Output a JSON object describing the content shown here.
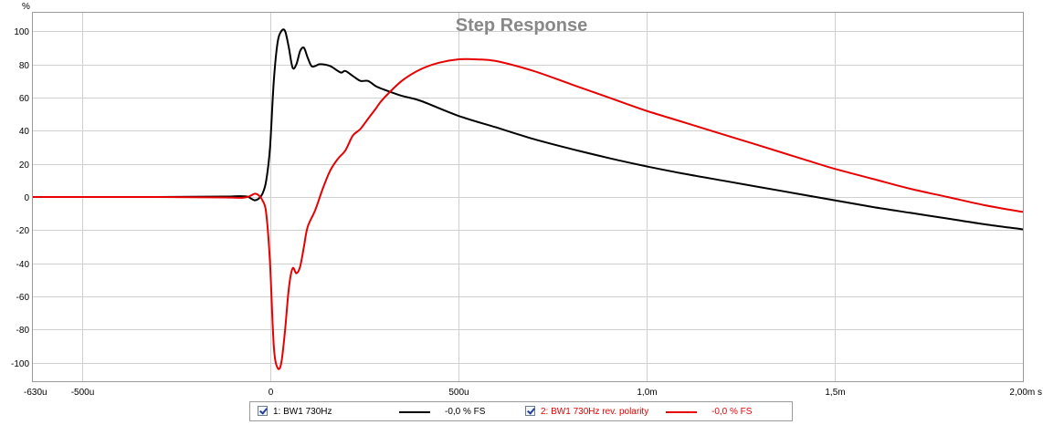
{
  "chart_data": {
    "type": "line",
    "title": "Step Response",
    "ylabel": "%",
    "xunit": "s",
    "xlim": [
      -0.63,
      2.0
    ],
    "ylim": [
      -110,
      110
    ],
    "grid": true,
    "legend_position": "bottom",
    "x_ticks": [
      {
        "v": -0.63,
        "label": "-630u"
      },
      {
        "v": -0.5,
        "label": "-500u"
      },
      {
        "v": 0,
        "label": "0"
      },
      {
        "v": 0.5,
        "label": "500u"
      },
      {
        "v": 1.0,
        "label": "1,0m"
      },
      {
        "v": 1.5,
        "label": "1,5m"
      },
      {
        "v": 2.0,
        "label": "2,00m s"
      }
    ],
    "y_ticks": [
      {
        "v": 100,
        "label": "100"
      },
      {
        "v": 80,
        "label": "80"
      },
      {
        "v": 60,
        "label": "60"
      },
      {
        "v": 40,
        "label": "40"
      },
      {
        "v": 20,
        "label": "20"
      },
      {
        "v": 0,
        "label": "0"
      },
      {
        "v": -20,
        "label": "-20"
      },
      {
        "v": -40,
        "label": "-40"
      },
      {
        "v": -60,
        "label": "-60"
      },
      {
        "v": -80,
        "label": "-80"
      },
      {
        "v": -100,
        "label": "-100"
      }
    ],
    "series": [
      {
        "name": "1: BW1 730Hz",
        "value_label": "-0,0 % FS",
        "color": "#000000",
        "points": [
          [
            -0.63,
            0
          ],
          [
            -0.3,
            0
          ],
          [
            -0.12,
            0.3
          ],
          [
            -0.08,
            0.5
          ],
          [
            -0.06,
            0.2
          ],
          [
            -0.05,
            -1
          ],
          [
            -0.04,
            -2
          ],
          [
            -0.03,
            -1
          ],
          [
            -0.02,
            2
          ],
          [
            -0.01,
            10
          ],
          [
            0,
            30
          ],
          [
            0.01,
            70
          ],
          [
            0.02,
            93
          ],
          [
            0.03,
            100
          ],
          [
            0.04,
            100
          ],
          [
            0.05,
            90
          ],
          [
            0.06,
            78
          ],
          [
            0.07,
            80
          ],
          [
            0.08,
            88
          ],
          [
            0.09,
            90
          ],
          [
            0.1,
            84
          ],
          [
            0.11,
            79
          ],
          [
            0.12,
            79
          ],
          [
            0.13,
            80
          ],
          [
            0.14,
            80
          ],
          [
            0.16,
            79
          ],
          [
            0.18,
            76
          ],
          [
            0.19,
            75
          ],
          [
            0.2,
            76
          ],
          [
            0.22,
            73
          ],
          [
            0.24,
            70
          ],
          [
            0.26,
            70
          ],
          [
            0.28,
            67
          ],
          [
            0.3,
            65
          ],
          [
            0.35,
            61
          ],
          [
            0.4,
            58
          ],
          [
            0.5,
            49
          ],
          [
            0.6,
            42
          ],
          [
            0.7,
            35
          ],
          [
            0.8,
            29
          ],
          [
            0.9,
            23.5
          ],
          [
            1.0,
            18.5
          ],
          [
            1.1,
            14
          ],
          [
            1.2,
            10
          ],
          [
            1.3,
            6
          ],
          [
            1.4,
            2
          ],
          [
            1.5,
            -2
          ],
          [
            1.6,
            -6
          ],
          [
            1.7,
            -9.5
          ],
          [
            1.8,
            -13
          ],
          [
            1.9,
            -16.5
          ],
          [
            2.0,
            -19.5
          ]
        ]
      },
      {
        "name": "2: BW1 730Hz rev. polarity",
        "value_label": "-0,0 % FS",
        "color": "#e80000",
        "points": [
          [
            -0.63,
            0
          ],
          [
            -0.3,
            0
          ],
          [
            -0.12,
            -0.3
          ],
          [
            -0.08,
            -0.5
          ],
          [
            -0.06,
            0
          ],
          [
            -0.05,
            1
          ],
          [
            -0.04,
            2
          ],
          [
            -0.03,
            1
          ],
          [
            -0.02,
            -2
          ],
          [
            -0.01,
            -10
          ],
          [
            0,
            -40
          ],
          [
            0.01,
            -90
          ],
          [
            0.02,
            -103
          ],
          [
            0.03,
            -100
          ],
          [
            0.04,
            -80
          ],
          [
            0.05,
            -55
          ],
          [
            0.06,
            -43
          ],
          [
            0.07,
            -46
          ],
          [
            0.08,
            -42
          ],
          [
            0.09,
            -30
          ],
          [
            0.1,
            -18
          ],
          [
            0.12,
            -8
          ],
          [
            0.14,
            5
          ],
          [
            0.16,
            16
          ],
          [
            0.18,
            23
          ],
          [
            0.2,
            28
          ],
          [
            0.22,
            37
          ],
          [
            0.24,
            41
          ],
          [
            0.26,
            47
          ],
          [
            0.28,
            53
          ],
          [
            0.3,
            59
          ],
          [
            0.35,
            70
          ],
          [
            0.4,
            77
          ],
          [
            0.45,
            81
          ],
          [
            0.5,
            83
          ],
          [
            0.55,
            83
          ],
          [
            0.6,
            82
          ],
          [
            0.7,
            76
          ],
          [
            0.8,
            68
          ],
          [
            0.9,
            60
          ],
          [
            1.0,
            52
          ],
          [
            1.1,
            45
          ],
          [
            1.2,
            38
          ],
          [
            1.3,
            31
          ],
          [
            1.4,
            24
          ],
          [
            1.5,
            17
          ],
          [
            1.6,
            11
          ],
          [
            1.7,
            5
          ],
          [
            1.8,
            0
          ],
          [
            1.9,
            -5
          ],
          [
            2.0,
            -9
          ]
        ]
      }
    ]
  }
}
